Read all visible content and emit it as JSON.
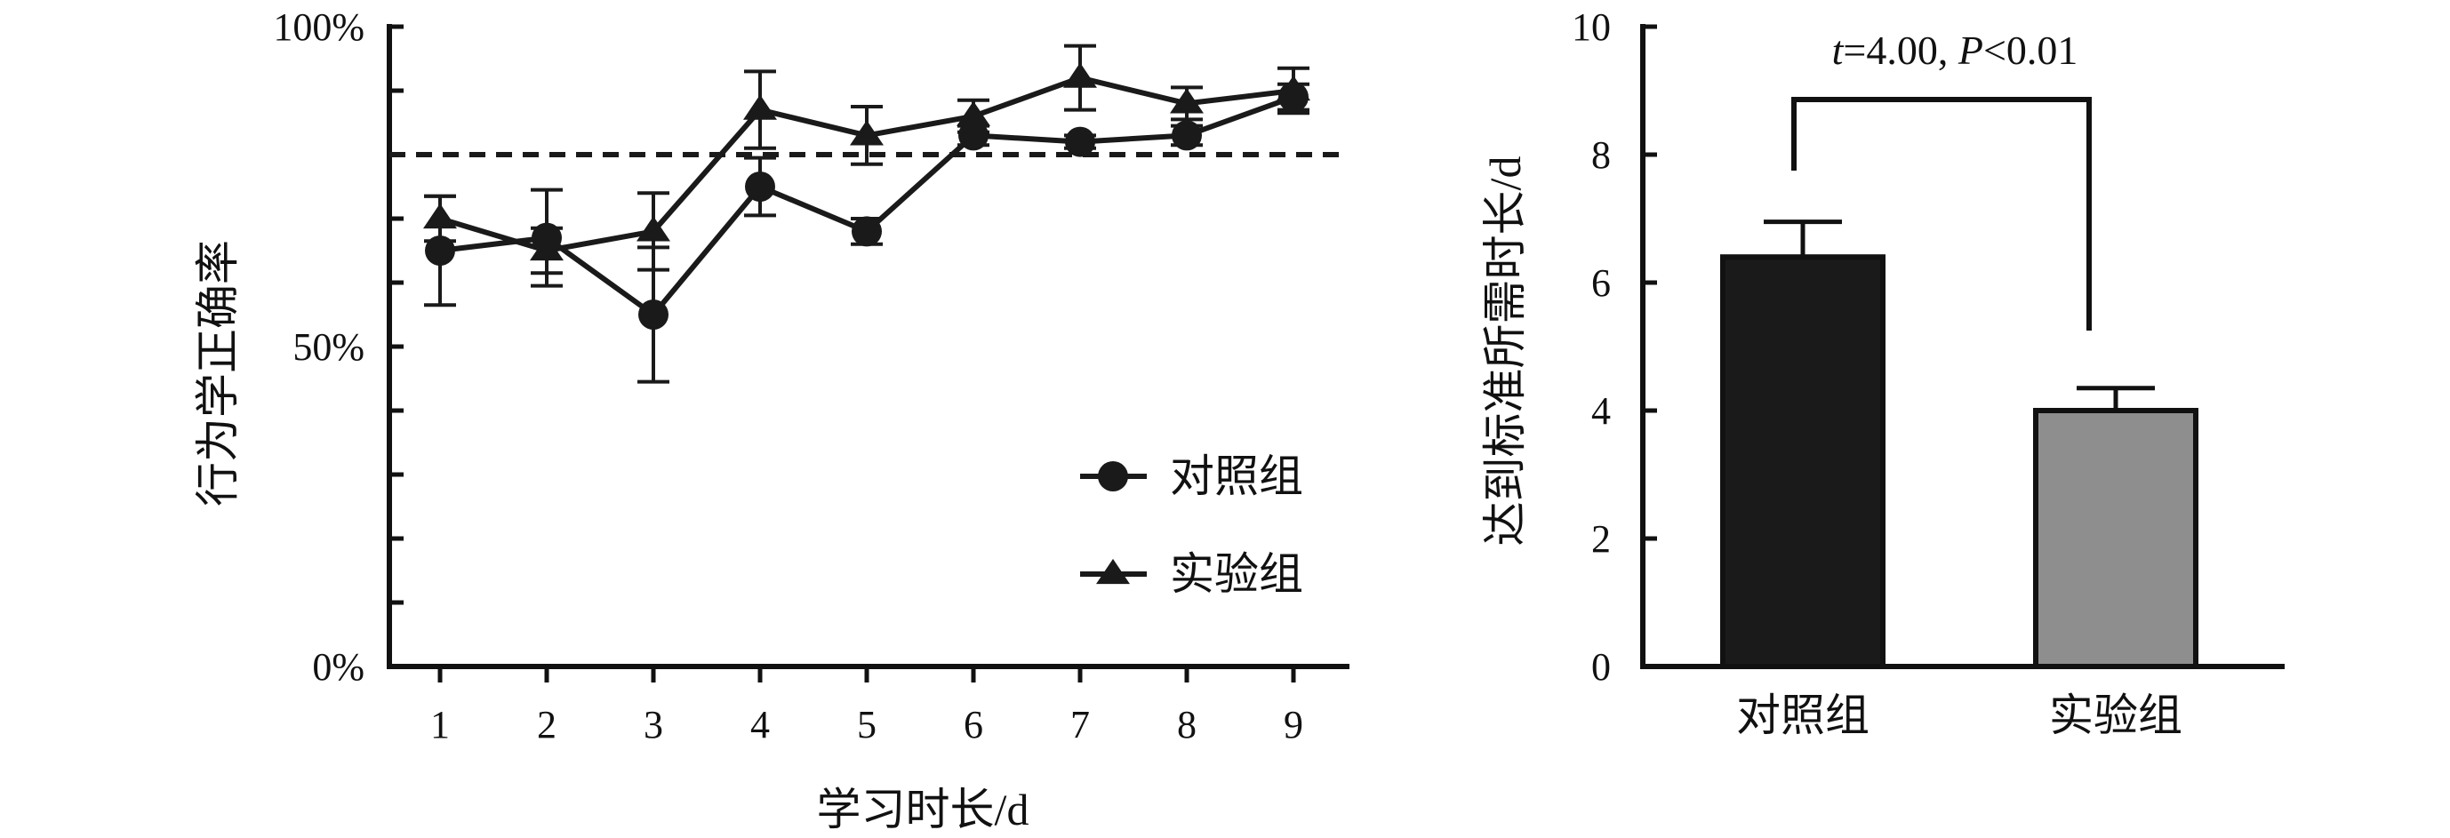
{
  "chart_data": [
    {
      "type": "line",
      "xlabel": "学习时长/d",
      "ylabel": "行为学正确率",
      "x": [
        1,
        2,
        3,
        4,
        5,
        6,
        7,
        8,
        9
      ],
      "ylim": [
        0,
        100
      ],
      "yticks": [
        0,
        50,
        100
      ],
      "ytick_labels": [
        "0%",
        "50%",
        "100%"
      ],
      "reference_line": {
        "y": 80,
        "style": "dashed"
      },
      "legend": {
        "placement": "bottom-right"
      },
      "series": [
        {
          "name": "对照组",
          "marker": "circle",
          "values": [
            65,
            67,
            55,
            75,
            68,
            83,
            82,
            83,
            89
          ],
          "errors": [
            8.5,
            7.5,
            10.5,
            4.5,
            2,
            1.5,
            1,
            1.5,
            2
          ]
        },
        {
          "name": "实验组",
          "marker": "triangle",
          "values": [
            70,
            65,
            68,
            87,
            83,
            86,
            92,
            88,
            90
          ],
          "errors": [
            3.5,
            3.5,
            6,
            6,
            4.5,
            2.5,
            5,
            2.5,
            3.5
          ]
        }
      ],
      "color": "#1a1a1a"
    },
    {
      "type": "bar",
      "ylabel": "达到标准所需时长/d",
      "categories": [
        "对照组",
        "实验组"
      ],
      "values": [
        6.4,
        4.0
      ],
      "errors": [
        0.55,
        0.35
      ],
      "ylim": [
        0,
        10
      ],
      "yticks": [
        0,
        2,
        4,
        6,
        8,
        10
      ],
      "colors": [
        "#1a1a1a",
        "#8e8e8e"
      ],
      "annotation": {
        "t_label": "t",
        "t_value": "=4.00, ",
        "p_label": "P",
        "p_value": "<0.01"
      }
    }
  ]
}
